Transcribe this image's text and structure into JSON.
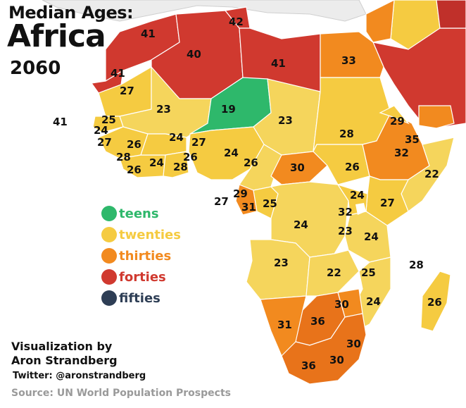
{
  "title": {
    "line1": "Median Ages:",
    "line2": "Africa",
    "line3": "2060"
  },
  "legend": [
    {
      "label": "teens",
      "color": "#2eb86b"
    },
    {
      "label": "twenties",
      "color": "#f5cb41"
    },
    {
      "label": "thirties",
      "color": "#f28a1f"
    },
    {
      "label": "forties",
      "color": "#d0392f"
    },
    {
      "label": "fifties",
      "color": "#2e3e55"
    }
  ],
  "credits": {
    "line1": "Visualization by",
    "line2": "Aron Strandberg",
    "twitter": "Twitter: @aronstrandberg",
    "source": "Source: UN World Population Prospects"
  },
  "map_labels": [
    "42",
    "41",
    "40",
    "41",
    "33",
    "41",
    "27",
    "23",
    "19",
    "23",
    "28",
    "29",
    "35",
    "32",
    "41",
    "25",
    "24",
    "27",
    "26",
    "24",
    "27",
    "26",
    "24",
    "28",
    "26",
    "24",
    "26",
    "28",
    "30",
    "26",
    "22",
    "27",
    "29",
    "31",
    "25",
    "24",
    "27",
    "32",
    "24",
    "23",
    "24",
    "28",
    "23",
    "22",
    "25",
    "30",
    "24",
    "26",
    "31",
    "36",
    "30",
    "36",
    "30"
  ]
}
